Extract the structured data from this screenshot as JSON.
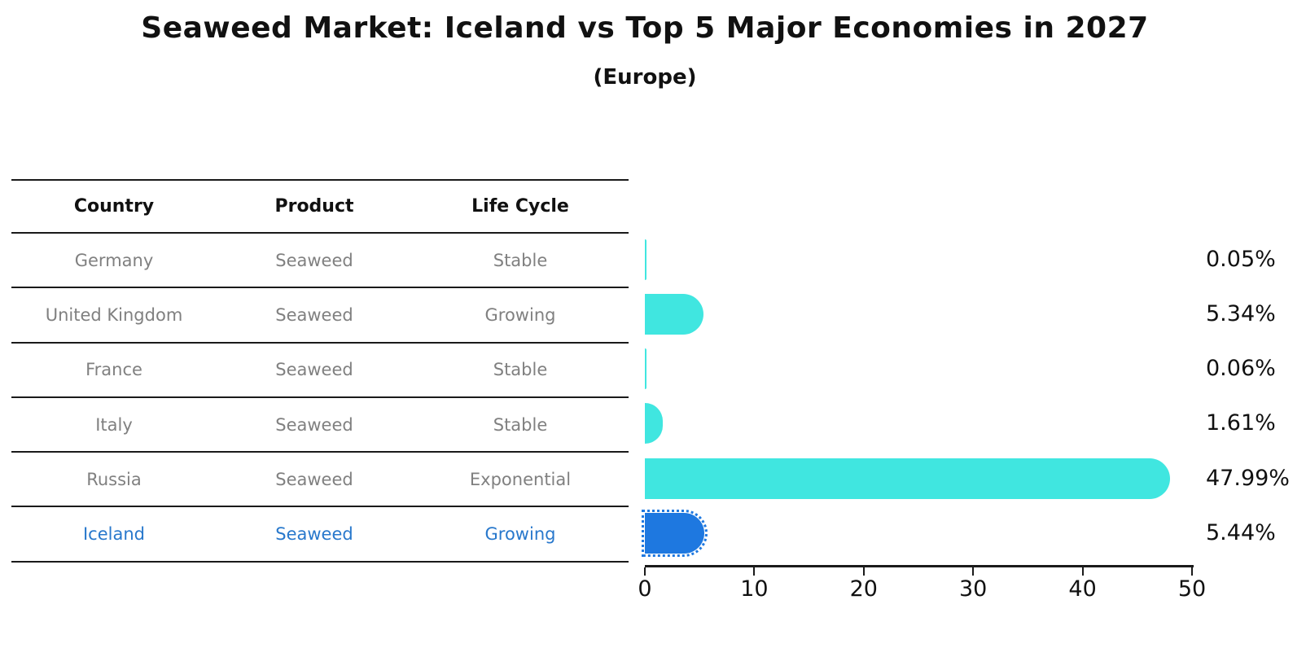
{
  "chart_data": {
    "type": "bar",
    "orientation": "horizontal",
    "title": "Seaweed Market: Iceland vs Top 5 Major Economies in 2027",
    "subtitle": "(Europe)",
    "categories": [
      "Germany",
      "United Kingdom",
      "France",
      "Italy",
      "Russia",
      "Iceland"
    ],
    "values": [
      0.05,
      5.34,
      0.06,
      1.61,
      47.99,
      5.44
    ],
    "value_labels": [
      "0.05%",
      "5.34%",
      "0.06%",
      "1.61%",
      "47.99%",
      "5.44%"
    ],
    "xlim": [
      0,
      50
    ],
    "x_ticks": [
      "0",
      "10",
      "20",
      "30",
      "40",
      "50"
    ],
    "grid": false,
    "legend": false,
    "highlight_category": "Iceland"
  },
  "table": {
    "headers": [
      "Country",
      "Product",
      "Life Cycle"
    ],
    "rows": [
      {
        "country": "Germany",
        "product": "Seaweed",
        "life_cycle": "Stable",
        "highlight": false
      },
      {
        "country": "United Kingdom",
        "product": "Seaweed",
        "life_cycle": "Growing",
        "highlight": false
      },
      {
        "country": "France",
        "product": "Seaweed",
        "life_cycle": "Stable",
        "highlight": false
      },
      {
        "country": "Italy",
        "product": "Seaweed",
        "life_cycle": "Stable",
        "highlight": false
      },
      {
        "country": "Russia",
        "product": "Seaweed",
        "life_cycle": "Exponential",
        "highlight": false
      },
      {
        "country": "Iceland",
        "product": "Seaweed",
        "life_cycle": "Growing",
        "highlight": true
      }
    ]
  },
  "colors": {
    "bar_default": "#40E6E0",
    "bar_highlight": "#1E78E0",
    "row_text": "#808080",
    "highlight_text": "#2878CC",
    "line": "#1a1a1a",
    "text": "#111111"
  }
}
